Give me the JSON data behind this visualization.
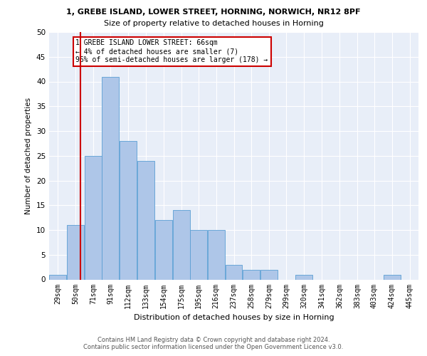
{
  "title1": "1, GREBE ISLAND, LOWER STREET, HORNING, NORWICH, NR12 8PF",
  "title2": "Size of property relative to detached houses in Horning",
  "xlabel": "Distribution of detached houses by size in Horning",
  "ylabel": "Number of detached properties",
  "bin_edges": [
    29,
    50,
    71,
    91,
    112,
    133,
    154,
    175,
    195,
    216,
    237,
    258,
    279,
    299,
    320,
    341,
    362,
    383,
    403,
    424,
    445
  ],
  "counts": [
    1,
    11,
    25,
    41,
    28,
    24,
    12,
    14,
    10,
    10,
    3,
    2,
    2,
    0,
    1,
    0,
    0,
    0,
    0,
    1,
    0
  ],
  "bar_color": "#aec6e8",
  "bar_edge_color": "#5a9fd4",
  "property_size": 66,
  "vline_color": "#cc0000",
  "ylim": [
    0,
    50
  ],
  "yticks": [
    0,
    5,
    10,
    15,
    20,
    25,
    30,
    35,
    40,
    45,
    50
  ],
  "annotation_text": "1 GREBE ISLAND LOWER STREET: 66sqm\n← 4% of detached houses are smaller (7)\n96% of semi-detached houses are larger (178) →",
  "annotation_box_color": "#ffffff",
  "annotation_border_color": "#cc0000",
  "footer_text": "Contains HM Land Registry data © Crown copyright and database right 2024.\nContains public sector information licensed under the Open Government Licence v3.0.",
  "background_color": "#e8eef8",
  "grid_color": "#ffffff",
  "tick_labels": [
    "29sqm",
    "50sqm",
    "71sqm",
    "91sqm",
    "112sqm",
    "133sqm",
    "154sqm",
    "175sqm",
    "195sqm",
    "216sqm",
    "237sqm",
    "258sqm",
    "279sqm",
    "299sqm",
    "320sqm",
    "341sqm",
    "362sqm",
    "383sqm",
    "403sqm",
    "424sqm",
    "445sqm"
  ],
  "fig_background": "#ffffff"
}
